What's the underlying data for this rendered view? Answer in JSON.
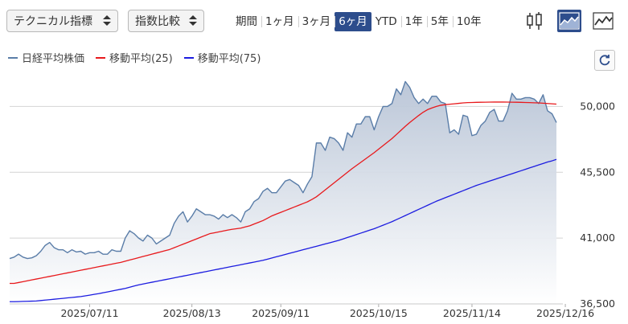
{
  "toolbar": {
    "technical_label": "テクニカル指標",
    "compare_label": "指数比較",
    "periods": [
      "期間",
      "1ヶ月",
      "3ヶ月",
      "6ヶ月",
      "YTD",
      "1年",
      "5年",
      "10年"
    ],
    "active_period": "6ヶ月",
    "chart_types": [
      "candlestick-icon",
      "area-chart-icon",
      "line-chart-icon"
    ],
    "active_chart_type": "area-chart-icon",
    "accent_color": "#2d4d8c"
  },
  "legend": {
    "items": [
      {
        "label": "日経平均株価",
        "color": "#5a7da8"
      },
      {
        "label": "移動平均(25)",
        "color": "#e8191c"
      },
      {
        "label": "移動平均(75)",
        "color": "#1c1ce0"
      }
    ]
  },
  "chart_data": {
    "type": "area",
    "xlabel": "",
    "ylabel": "",
    "ylim": [
      36500,
      52000
    ],
    "yticks": [
      36500,
      41000,
      45500,
      50000
    ],
    "ytick_labels": [
      "36,500",
      "41,000",
      "45,500",
      "50,000"
    ],
    "xtick_labels": [
      "2025/07/11",
      "2025/08/13",
      "2025/09/11",
      "2025/10/15",
      "2025/11/14",
      "2025/12/16"
    ],
    "xtick_index": [
      18,
      41,
      61,
      83,
      104,
      125
    ],
    "grid": true,
    "series": [
      {
        "name": "日経平均株価",
        "color": "#5a7da8",
        "fill": true,
        "values": [
          39600,
          39700,
          39900,
          39700,
          39600,
          39650,
          39800,
          40100,
          40500,
          40700,
          40350,
          40200,
          40200,
          40000,
          40200,
          40050,
          40100,
          39900,
          40000,
          40000,
          40100,
          39900,
          39900,
          40200,
          40100,
          40100,
          41000,
          41500,
          41300,
          41000,
          40800,
          41200,
          41000,
          40600,
          40800,
          41000,
          41200,
          42000,
          42500,
          42800,
          42100,
          42500,
          43000,
          42800,
          42600,
          42600,
          42500,
          42300,
          42600,
          42400,
          42600,
          42400,
          42100,
          42800,
          43000,
          43500,
          43700,
          44200,
          44400,
          44100,
          44100,
          44500,
          44900,
          45000,
          44800,
          44600,
          44100,
          44700,
          45200,
          47500,
          47500,
          47000,
          47900,
          47800,
          47500,
          47000,
          48200,
          47900,
          48800,
          48800,
          49300,
          49300,
          48400,
          49300,
          50000,
          50000,
          50200,
          51200,
          50800,
          51700,
          51300,
          50600,
          50200,
          50500,
          50200,
          50700,
          50700,
          50300,
          50200,
          48200,
          48400,
          48100,
          49400,
          49300,
          48000,
          48100,
          48700,
          49000,
          49600,
          49800,
          49000,
          49000,
          49700,
          50900,
          50500,
          50500,
          50600,
          50600,
          50500,
          50200,
          50800,
          49700,
          49500,
          48900
        ]
      },
      {
        "name": "移動平均(25)",
        "color": "#e8191c",
        "fill": false,
        "values": [
          37900,
          37900,
          37960,
          38020,
          38080,
          38140,
          38200,
          38260,
          38320,
          38380,
          38440,
          38500,
          38560,
          38620,
          38680,
          38740,
          38800,
          38860,
          38920,
          38980,
          39040,
          39100,
          39160,
          39220,
          39280,
          39340,
          39420,
          39500,
          39580,
          39660,
          39740,
          39820,
          39900,
          39980,
          40060,
          40140,
          40220,
          40340,
          40460,
          40580,
          40700,
          40820,
          40940,
          41060,
          41180,
          41300,
          41360,
          41420,
          41480,
          41540,
          41600,
          41640,
          41680,
          41760,
          41840,
          41960,
          42080,
          42200,
          42360,
          42520,
          42640,
          42760,
          42880,
          43000,
          43120,
          43240,
          43360,
          43480,
          43640,
          43820,
          44060,
          44300,
          44540,
          44780,
          45020,
          45260,
          45500,
          45740,
          45960,
          46180,
          46400,
          46620,
          46840,
          47080,
          47320,
          47560,
          47800,
          48080,
          48360,
          48640,
          48900,
          49140,
          49380,
          49600,
          49780,
          49900,
          50000,
          50080,
          50120,
          50150,
          50180,
          50210,
          50240,
          50260,
          50270,
          50280,
          50285,
          50290,
          50295,
          50300,
          50300,
          50300,
          50295,
          50290,
          50285,
          50280,
          50270,
          50260,
          50250,
          50240,
          50220,
          50200,
          50180,
          50160
        ]
      },
      {
        "name": "移動平均(75)",
        "color": "#1c1ce0",
        "fill": false,
        "values": [
          36650,
          36650,
          36660,
          36670,
          36680,
          36690,
          36700,
          36730,
          36760,
          36790,
          36820,
          36850,
          36880,
          36910,
          36940,
          36970,
          37000,
          37050,
          37100,
          37150,
          37200,
          37260,
          37320,
          37380,
          37440,
          37500,
          37560,
          37640,
          37720,
          37800,
          37860,
          37920,
          37980,
          38040,
          38100,
          38160,
          38220,
          38280,
          38340,
          38400,
          38460,
          38520,
          38580,
          38640,
          38700,
          38760,
          38820,
          38880,
          38940,
          39000,
          39060,
          39120,
          39180,
          39240,
          39300,
          39360,
          39420,
          39480,
          39560,
          39640,
          39720,
          39800,
          39880,
          39960,
          40040,
          40120,
          40200,
          40280,
          40360,
          40440,
          40520,
          40600,
          40680,
          40760,
          40840,
          40940,
          41040,
          41140,
          41240,
          41340,
          41440,
          41540,
          41640,
          41760,
          41880,
          42000,
          42120,
          42260,
          42400,
          42540,
          42680,
          42820,
          42960,
          43100,
          43240,
          43380,
          43520,
          43640,
          43760,
          43880,
          44000,
          44120,
          44240,
          44360,
          44480,
          44600,
          44700,
          44800,
          44900,
          45000,
          45100,
          45200,
          45300,
          45400,
          45500,
          45600,
          45700,
          45800,
          45900,
          46000,
          46100,
          46200,
          46280,
          46380
        ]
      }
    ]
  }
}
